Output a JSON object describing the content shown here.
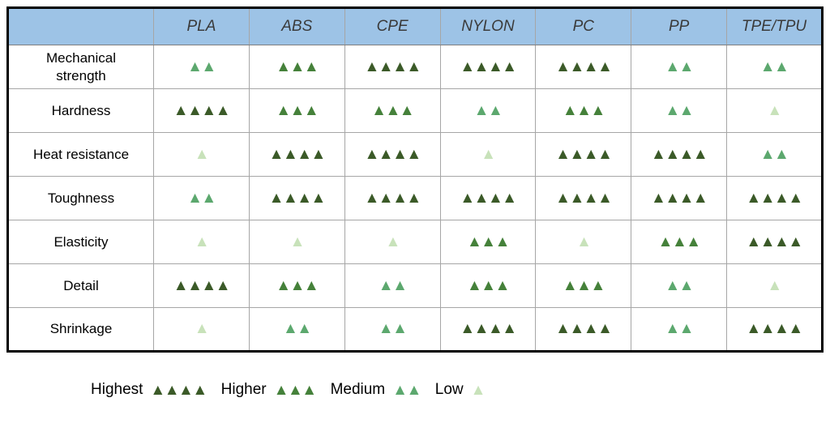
{
  "colors": {
    "header_bg": "#9DC3E6",
    "header_text": "#3A3A3A",
    "grid_line": "#A6A6A6",
    "outer_border": "#000000",
    "highest": "#3B5A28",
    "higher": "#45813A",
    "medium": "#5CA86E",
    "low": "#C8E2BA"
  },
  "chart_data": {
    "type": "table",
    "title": "",
    "glyph": "▲",
    "columns": [
      "PLA",
      "ABS",
      "CPE",
      "NYLON",
      "PC",
      "PP",
      "TPE/TPU"
    ],
    "rows": [
      {
        "property": "Mechanical strength",
        "levels": [
          "medium",
          "higher",
          "highest",
          "highest",
          "highest",
          "medium",
          "medium"
        ]
      },
      {
        "property": "Hardness",
        "levels": [
          "highest",
          "higher",
          "higher",
          "medium",
          "higher",
          "medium",
          "low"
        ]
      },
      {
        "property": "Heat resistance",
        "levels": [
          "low",
          "highest",
          "highest",
          "low",
          "highest",
          "highest",
          "medium"
        ]
      },
      {
        "property": "Toughness",
        "levels": [
          "medium",
          "highest",
          "highest",
          "highest",
          "highest",
          "highest",
          "highest"
        ]
      },
      {
        "property": "Elasticity",
        "levels": [
          "low",
          "low",
          "low",
          "higher",
          "low",
          "higher",
          "highest"
        ]
      },
      {
        "property": "Detail",
        "levels": [
          "highest",
          "higher",
          "medium",
          "higher",
          "higher",
          "medium",
          "low"
        ]
      },
      {
        "property": "Shrinkage",
        "levels": [
          "low",
          "medium",
          "medium",
          "highest",
          "highest",
          "medium",
          "highest"
        ]
      }
    ],
    "level_counts": {
      "highest": 4,
      "higher": 3,
      "medium": 2,
      "low": 1
    },
    "legend": [
      {
        "label": "Highest",
        "level": "highest"
      },
      {
        "label": "Higher",
        "level": "higher"
      },
      {
        "label": "Medium",
        "level": "medium"
      },
      {
        "label": "Low",
        "level": "low"
      }
    ]
  }
}
